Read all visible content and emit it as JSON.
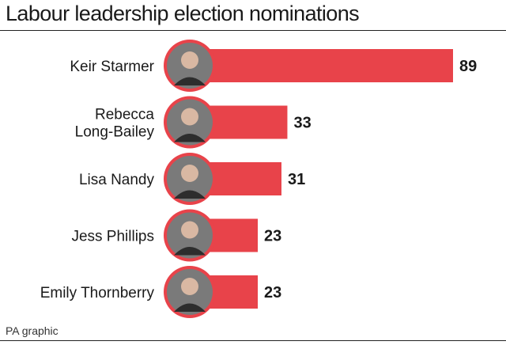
{
  "title": "Labour leadership election nominations",
  "source": "PA graphic",
  "colors": {
    "bar": "#e8434a",
    "portrait_ring": "#e8434a",
    "portrait_bg": "#7a7a7a",
    "text": "#1a1a1a"
  },
  "chart_data": {
    "type": "bar",
    "orientation": "horizontal",
    "title": "Labour leadership election nominations",
    "categories": [
      [
        "Keir Starmer"
      ],
      [
        "Rebecca",
        "Long-Bailey"
      ],
      [
        "Lisa Nandy"
      ],
      [
        "Jess Phillips"
      ],
      [
        "Emily Thornberry"
      ]
    ],
    "values": [
      89,
      33,
      31,
      23,
      23
    ],
    "data_labels": [
      "89",
      "33",
      "31",
      "23",
      "23"
    ],
    "xlabel": "",
    "ylabel": "",
    "xlim": [
      0,
      89
    ],
    "grid": false,
    "legend": "none"
  }
}
